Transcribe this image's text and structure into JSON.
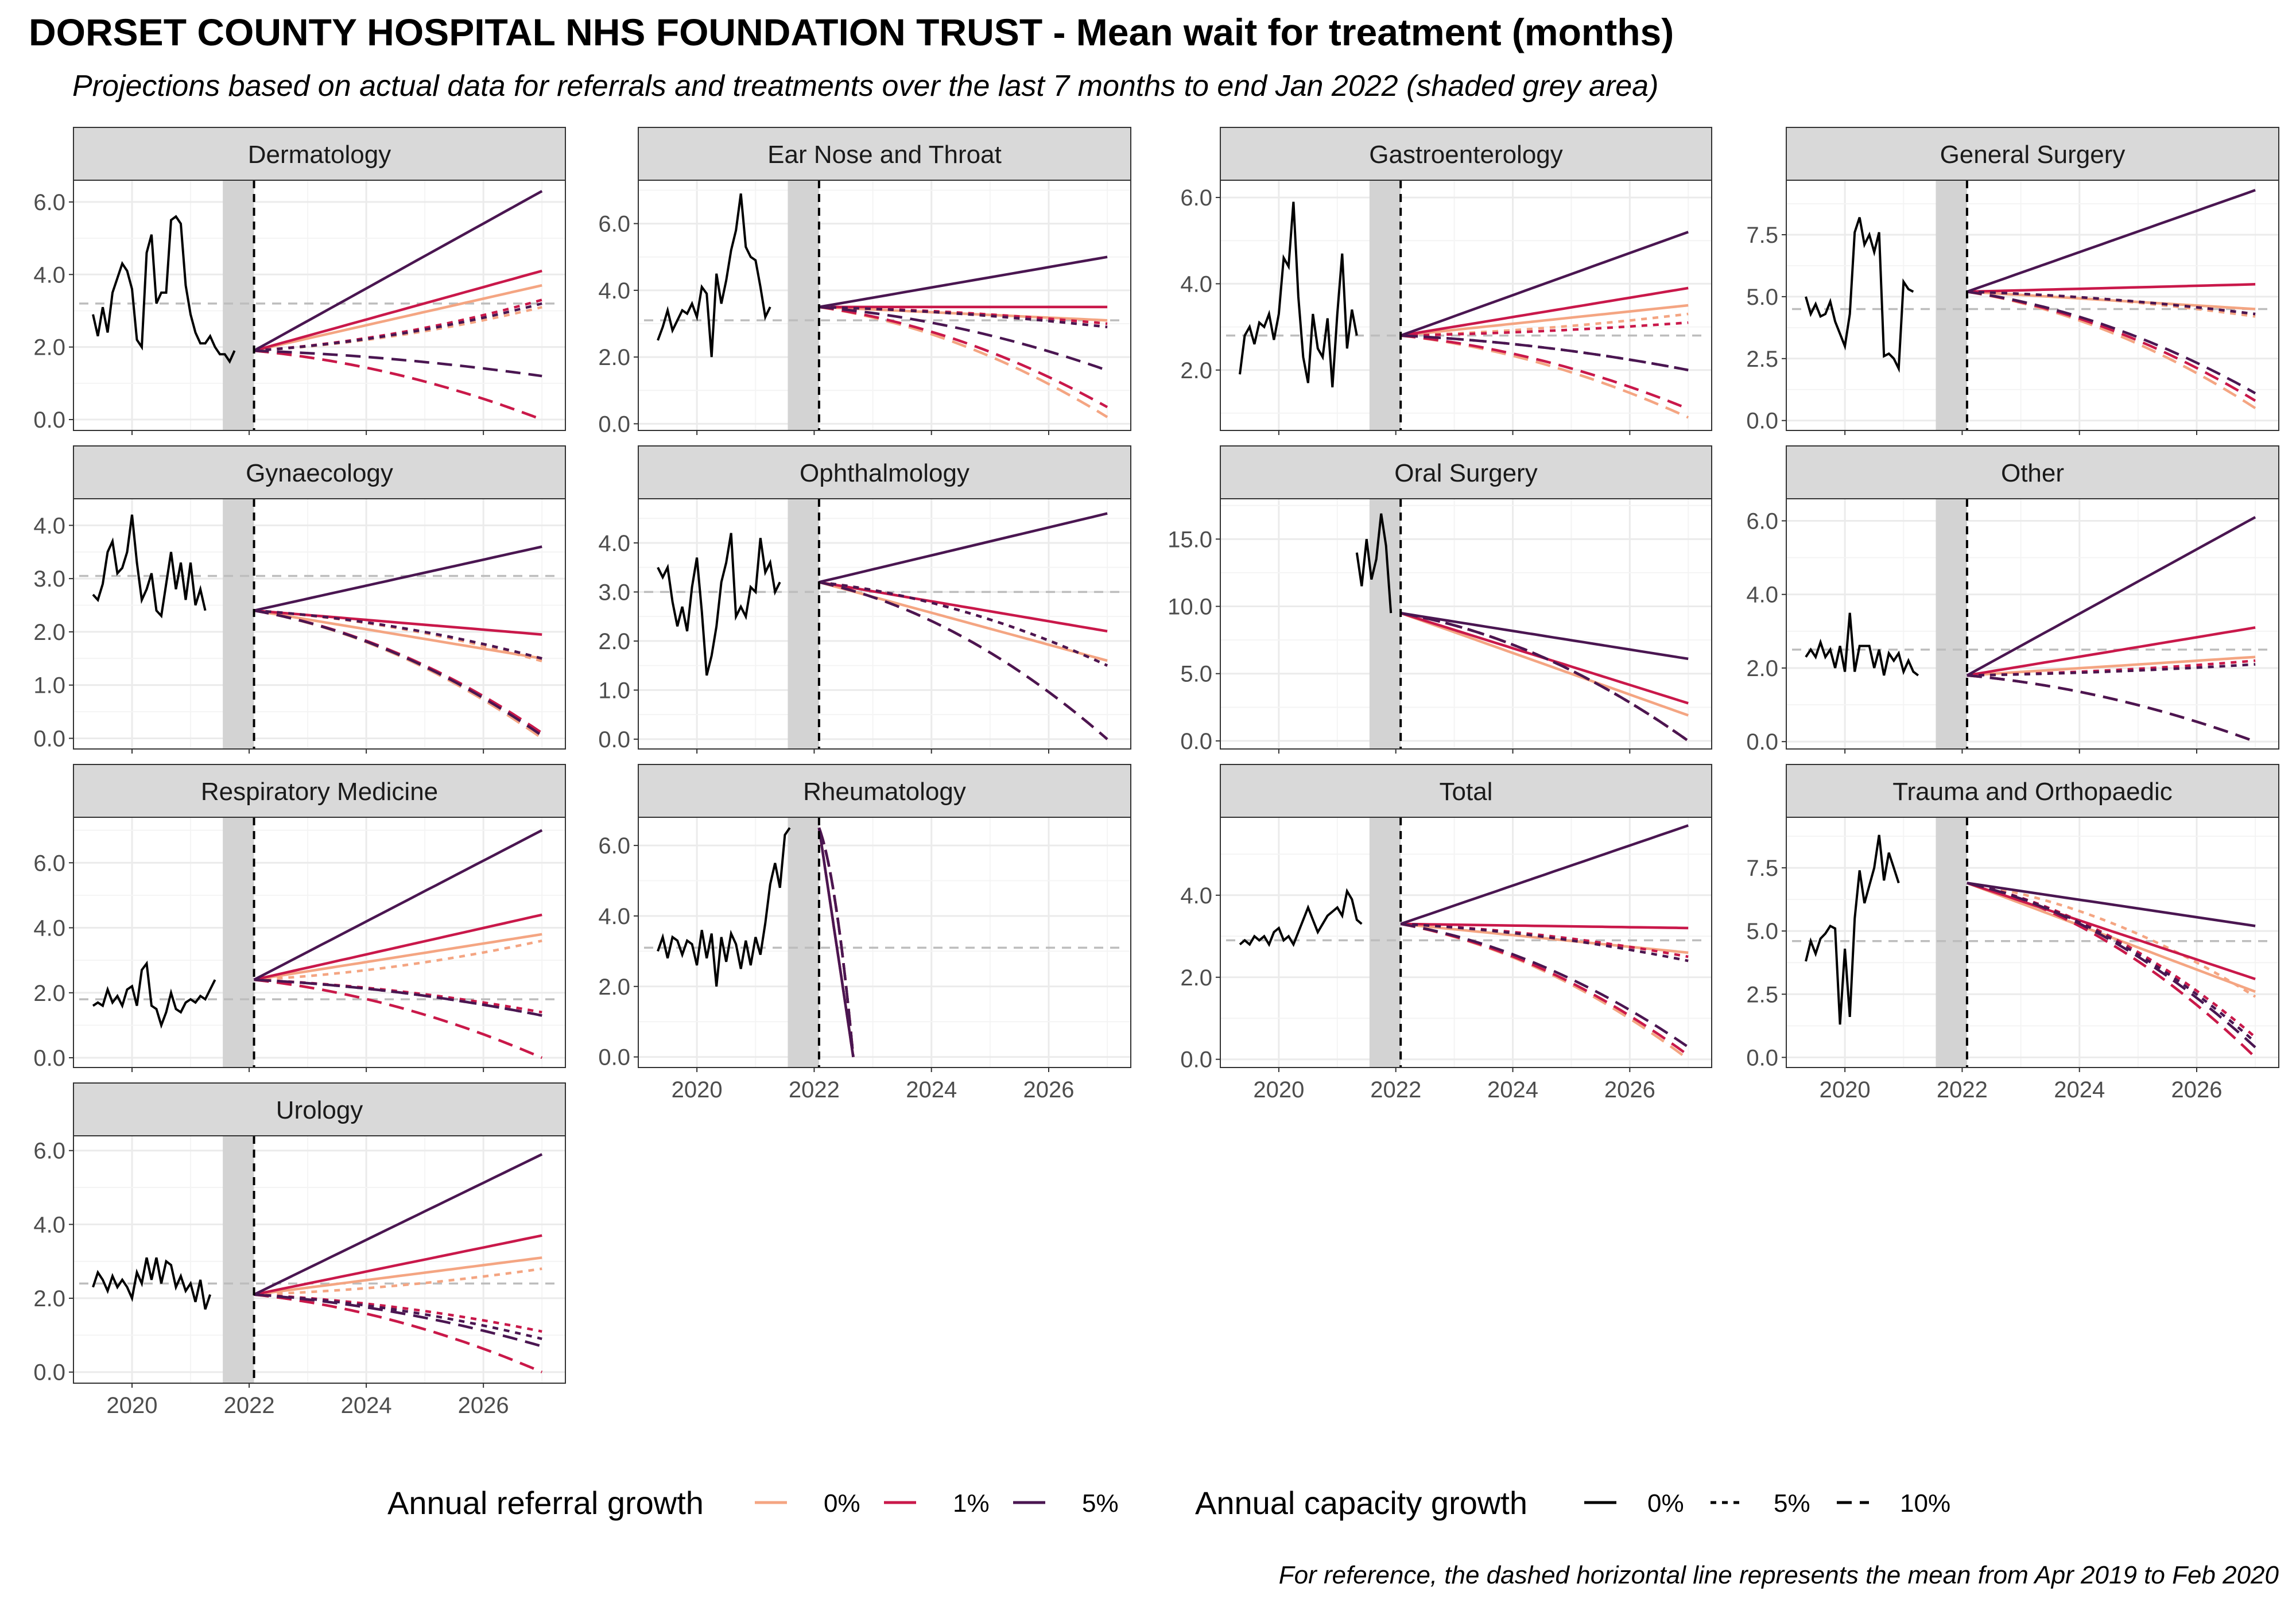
{
  "title": "DORSET COUNTY HOSPITAL NHS FOUNDATION TRUST - Mean wait for treatment (months)",
  "subtitle": "Projections based on actual data for referrals and treatments over the last 7 months to end Jan 2022 (shaded grey area)",
  "caption": "For reference, the dashed horizontal line represents the mean from Apr 2019 to Feb 2020",
  "legend": {
    "referral_title": "Annual referral growth",
    "referral_items": [
      {
        "label": "0%",
        "color": "#f4a582"
      },
      {
        "label": "1%",
        "color": "#c9184a"
      },
      {
        "label": "5%",
        "color": "#4a1651"
      }
    ],
    "capacity_title": "Annual capacity growth",
    "capacity_items": [
      {
        "label": "0%",
        "dash": "solid"
      },
      {
        "label": "5%",
        "dash": "dotted"
      },
      {
        "label": "10%",
        "dash": "dashed"
      }
    ]
  },
  "colors": {
    "referral_0": "#f4a582",
    "referral_1": "#c9184a",
    "referral_5": "#4a1651",
    "actual": "#000000",
    "reference": "#bdbdbd",
    "shade": "#d3d3d3",
    "strip": "#d9d9d9"
  },
  "chart_data": [
    {
      "type": "line",
      "panel": "Dermatology",
      "actual": [
        2.9,
        2.3,
        3.1,
        2.4,
        3.5,
        3.9,
        4.3,
        4.1,
        3.6,
        2.2,
        2.0,
        4.6,
        5.1,
        3.2,
        3.5,
        3.5,
        5.5,
        5.6,
        5.4,
        3.7,
        2.9,
        2.4,
        2.1,
        2.1,
        2.3,
        2.0,
        1.8,
        1.8,
        1.6,
        1.9
      ],
      "actual_start": "2019-05",
      "ref": 3.2,
      "end": {
        "r0c0": 3.7,
        "r1c0": 4.1,
        "r5c0": 6.3,
        "r0c5": 3.1,
        "r1c5": 3.3,
        "r5c5": 3.2,
        "r0c10": 0.0,
        "r1c10": 0.0,
        "r5c10": 1.2
      },
      "yticks": [
        0,
        2,
        4,
        6
      ],
      "ylim": [
        -0.3,
        6.6
      ]
    },
    {
      "type": "line",
      "panel": "Ear Nose and Throat",
      "actual": [
        2.5,
        2.9,
        3.4,
        2.8,
        3.1,
        3.4,
        3.3,
        3.6,
        3.2,
        4.1,
        3.9,
        2.0,
        4.5,
        3.6,
        4.3,
        5.2,
        5.8,
        6.9,
        5.3,
        5.0,
        4.9,
        4.1,
        3.2,
        3.5
      ],
      "actual_start": "2019-05",
      "ref": 3.1,
      "end": {
        "r0c0": 3.1,
        "r1c0": 3.5,
        "r5c0": 5.0,
        "r0c5": 2.9,
        "r1c5": 3.0,
        "r5c5": 2.9,
        "r0c10": 0.2,
        "r1c10": 0.5,
        "r5c10": 1.6
      },
      "yticks": [
        0,
        2,
        4,
        6
      ],
      "ylim": [
        -0.2,
        7.3
      ]
    },
    {
      "type": "line",
      "panel": "Gastroenterology",
      "actual": [
        1.9,
        2.8,
        3.0,
        2.6,
        3.1,
        3.0,
        3.3,
        2.7,
        3.3,
        4.6,
        4.4,
        5.9,
        3.7,
        2.3,
        1.7,
        3.3,
        2.5,
        2.3,
        3.2,
        1.6,
        3.3,
        4.7,
        2.5,
        3.4,
        2.8
      ],
      "actual_start": "2019-05",
      "ref": 2.8,
      "end": {
        "r0c0": 3.5,
        "r1c0": 3.9,
        "r5c0": 5.2,
        "r0c5": 3.3,
        "r1c5": 3.1,
        "r5c5": 2.0,
        "r0c10": 0.9,
        "r1c10": 1.1,
        "r5c10": 2.0
      },
      "yticks": [
        2,
        4,
        6
      ],
      "ylim": [
        0.6,
        6.4
      ]
    },
    {
      "type": "line",
      "panel": "General Surgery",
      "actual": [
        5.0,
        4.3,
        4.7,
        4.2,
        4.3,
        4.8,
        4.0,
        3.5,
        3.0,
        4.3,
        7.6,
        8.2,
        7.1,
        7.5,
        6.8,
        7.6,
        2.6,
        2.7,
        2.5,
        2.1,
        5.6,
        5.3,
        5.2
      ],
      "actual_start": "2019-05",
      "ref": 4.5,
      "end": {
        "r0c0": 4.5,
        "r1c0": 5.5,
        "r5c0": 9.3,
        "r0c5": 4.2,
        "r1c5": 4.3,
        "r5c5": 4.3,
        "r0c10": 0.5,
        "r1c10": 0.8,
        "r5c10": 1.1
      },
      "yticks": [
        0,
        2.5,
        5,
        7.5
      ],
      "ylim": [
        -0.4,
        9.7
      ]
    },
    {
      "type": "line",
      "panel": "Gynaecology",
      "actual": [
        2.7,
        2.6,
        2.9,
        3.5,
        3.7,
        3.1,
        3.2,
        3.5,
        4.2,
        3.3,
        2.6,
        2.8,
        3.1,
        2.4,
        2.3,
        2.9,
        3.5,
        2.8,
        3.3,
        2.6,
        3.3,
        2.5,
        2.8,
        2.4
      ],
      "actual_start": "2019-05",
      "ref": 3.05,
      "end": {
        "r0c0": 1.5,
        "r1c0": 1.95,
        "r5c0": 3.6,
        "r0c5": 1.45,
        "r1c5": 1.5,
        "r5c5": 1.5,
        "r0c10": 0.0,
        "r1c10": 0.1,
        "r5c10": 0.05
      },
      "yticks": [
        0,
        1,
        2,
        3,
        4
      ],
      "ylim": [
        -0.2,
        4.5
      ]
    },
    {
      "type": "line",
      "panel": "Ophthalmology",
      "actual": [
        3.5,
        3.3,
        3.5,
        2.8,
        2.3,
        2.7,
        2.2,
        3.1,
        3.7,
        2.6,
        1.3,
        1.7,
        2.3,
        3.2,
        3.6,
        4.2,
        2.5,
        2.7,
        2.5,
        3.1,
        3.0,
        4.1,
        3.4,
        3.6,
        3.0,
        3.2
      ],
      "actual_start": "2019-05",
      "ref": 3.0,
      "end": {
        "r0c0": 1.6,
        "r1c0": 2.2,
        "r5c0": 4.6,
        "r0c5": 1.5,
        "r1c5": 1.5,
        "r5c5": 1.5,
        "r0c10": 0.0,
        "r1c10": 0.0,
        "r5c10": 0.0
      },
      "yticks": [
        0,
        1,
        2,
        3,
        4
      ],
      "ylim": [
        -0.2,
        4.9
      ]
    },
    {
      "type": "line",
      "panel": "Oral Surgery",
      "actual": [
        14.0,
        11.5,
        15.0,
        12.0,
        13.5,
        16.9,
        14.5,
        9.5
      ],
      "actual_start": "2021-05",
      "ref": null,
      "end": {
        "r0c0": 1.9,
        "r1c0": 2.8,
        "r5c0": 6.1,
        "r0c5": 0.0,
        "r1c5": 0.0,
        "r5c5": 0.0,
        "r0c10": 0.0,
        "r1c10": 0.0,
        "r5c10": 0.0
      },
      "yticks": [
        0,
        5,
        10,
        15
      ],
      "ylim": [
        -0.6,
        18
      ]
    },
    {
      "type": "line",
      "panel": "Other",
      "actual": [
        2.3,
        2.5,
        2.3,
        2.7,
        2.3,
        2.5,
        2.0,
        2.6,
        1.9,
        3.5,
        1.9,
        2.6,
        2.6,
        2.6,
        2.0,
        2.5,
        1.8,
        2.4,
        2.2,
        2.4,
        1.9,
        2.2,
        1.9,
        1.8
      ],
      "actual_start": "2019-05",
      "ref": 2.5,
      "end": {
        "r0c0": 2.3,
        "r1c0": 3.1,
        "r5c0": 6.1,
        "r0c5": 2.1,
        "r1c5": 2.2,
        "r5c5": 2.1,
        "r0c10": 0.0,
        "r1c10": 0.0,
        "r5c10": 0.0
      },
      "yticks": [
        0,
        2,
        4,
        6
      ],
      "ylim": [
        -0.2,
        6.6
      ]
    },
    {
      "type": "line",
      "panel": "Respiratory Medicine",
      "actual": [
        1.6,
        1.7,
        1.6,
        2.1,
        1.7,
        1.9,
        1.6,
        2.1,
        2.2,
        1.6,
        2.7,
        2.9,
        1.6,
        1.5,
        1.0,
        1.4,
        2.0,
        1.5,
        1.4,
        1.7,
        1.8,
        1.7,
        1.9,
        1.8,
        2.1,
        2.4
      ],
      "actual_start": "2019-05",
      "ref": 1.8,
      "end": {
        "r0c0": 3.8,
        "r1c0": 4.4,
        "r5c0": 7.0,
        "r0c5": 3.6,
        "r1c5": 1.4,
        "r5c5": 1.3,
        "r0c10": 0.0,
        "r1c10": 0.0,
        "r5c10": 1.3
      },
      "yticks": [
        0,
        2,
        4,
        6
      ],
      "ylim": [
        -0.3,
        7.4
      ]
    },
    {
      "type": "line",
      "panel": "Rheumatology",
      "actual": [
        3.0,
        3.4,
        2.8,
        3.4,
        3.3,
        2.9,
        3.3,
        3.2,
        2.6,
        3.6,
        2.8,
        3.5,
        2.0,
        3.4,
        2.7,
        3.5,
        3.2,
        2.5,
        3.3,
        2.6,
        3.4,
        2.9,
        3.8,
        4.9,
        5.5,
        4.8,
        6.3,
        6.5
      ],
      "actual_start": "2019-05",
      "ref": 3.1,
      "proj_drop_end": "2022-09",
      "end": {
        "r0c0": 0,
        "r1c0": 0,
        "r5c0": 0,
        "r0c5": 0,
        "r1c5": 0,
        "r5c5": 0,
        "r0c10": 0,
        "r1c10": 0,
        "r5c10": 0
      },
      "yticks": [
        0,
        2,
        4,
        6
      ],
      "ylim": [
        -0.3,
        6.8
      ]
    },
    {
      "type": "line",
      "panel": "Total",
      "actual": [
        2.8,
        2.9,
        2.8,
        3.0,
        2.9,
        3.0,
        2.8,
        3.1,
        3.2,
        2.9,
        3.0,
        2.8,
        3.1,
        3.4,
        3.7,
        3.4,
        3.1,
        3.3,
        3.5,
        3.6,
        3.7,
        3.5,
        4.1,
        3.9,
        3.4,
        3.3
      ],
      "actual_start": "2019-05",
      "ref": 2.9,
      "end": {
        "r0c0": 2.6,
        "r1c0": 3.2,
        "r5c0": 5.7,
        "r0c5": 2.4,
        "r1c5": 2.5,
        "r5c5": 2.4,
        "r0c10": 0.0,
        "r1c10": 0.1,
        "r5c10": 0.3
      },
      "yticks": [
        0,
        2,
        4
      ],
      "ylim": [
        -0.2,
        5.9
      ]
    },
    {
      "type": "line",
      "panel": "Trauma and Orthopaedic",
      "actual": [
        3.8,
        4.6,
        4.1,
        4.7,
        4.9,
        5.2,
        5.1,
        1.3,
        4.3,
        1.6,
        5.5,
        7.4,
        6.1,
        6.8,
        7.5,
        8.8,
        7.0,
        8.1,
        7.5,
        6.9
      ],
      "actual_start": "2019-05",
      "ref": 4.6,
      "end": {
        "r0c0": 2.6,
        "r1c0": 3.1,
        "r5c0": 5.2,
        "r0c5": 2.4,
        "r1c5": 0.8,
        "r5c5": 0.6,
        "r0c10": 0.0,
        "r1c10": 0.0,
        "r5c10": 0.4
      },
      "yticks": [
        0,
        2.5,
        5,
        7.5
      ],
      "ylim": [
        -0.4,
        9.5
      ]
    },
    {
      "type": "line",
      "panel": "Urology",
      "actual": [
        2.3,
        2.7,
        2.5,
        2.2,
        2.6,
        2.3,
        2.5,
        2.3,
        2.0,
        2.7,
        2.4,
        3.1,
        2.5,
        3.1,
        2.4,
        3.0,
        2.9,
        2.3,
        2.6,
        2.2,
        2.4,
        1.9,
        2.5,
        1.7,
        2.1
      ],
      "actual_start": "2019-05",
      "ref": 2.4,
      "end": {
        "r0c0": 3.1,
        "r1c0": 3.7,
        "r5c0": 5.9,
        "r0c5": 2.8,
        "r1c5": 1.1,
        "r5c5": 0.9,
        "r0c10": 0.0,
        "r1c10": 0.0,
        "r5c10": 0.7
      },
      "yticks": [
        0,
        2,
        4,
        6
      ],
      "ylim": [
        -0.3,
        6.4
      ]
    }
  ],
  "x_axis": {
    "ticks": [
      "2020",
      "2022",
      "2024",
      "2026"
    ]
  }
}
